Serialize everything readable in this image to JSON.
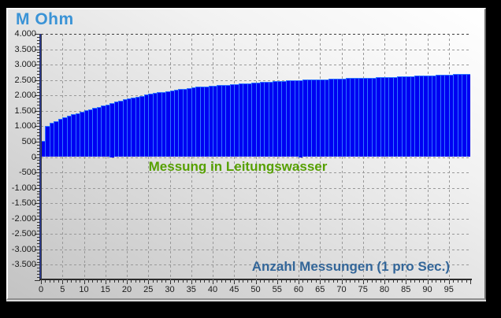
{
  "chart_data": {
    "type": "bar",
    "title": "M Ohm",
    "ylabel": "M Ohm",
    "xlabel": "Anzahl Messungen (1 pro Sec.)",
    "annotation": "Messung in Leitungswasser",
    "xlim": [
      0,
      100
    ],
    "ylim": [
      -4000,
      4000
    ],
    "grid": true,
    "gridline_style": "dashed",
    "y_major_step": 500,
    "y_minor_step": 100,
    "x_major_step": 5,
    "x_minor_step": 1,
    "y_tick_labels": [
      "4.000",
      "3.500",
      "3.000",
      "2.500",
      "2.000",
      "1.500",
      "1.000",
      "500",
      "0",
      "-500",
      "-1.000",
      "-1.500",
      "-2.000",
      "-2.500",
      "-3.000",
      "-3.500"
    ],
    "x_tick_labels": [
      "0",
      "5",
      "10",
      "15",
      "20",
      "25",
      "30",
      "35",
      "40",
      "45",
      "50",
      "55",
      "60",
      "65",
      "70",
      "75",
      "80",
      "85",
      "90",
      "95"
    ],
    "x_start": 0,
    "x_step": 1,
    "bar_count": 100,
    "values": [
      520,
      1020,
      1100,
      1170,
      1230,
      1290,
      1340,
      1390,
      1430,
      1470,
      1510,
      1550,
      1590,
      1630,
      1670,
      1710,
      1750,
      1790,
      1830,
      1870,
      1900,
      1930,
      1960,
      1990,
      2020,
      2050,
      2080,
      2100,
      2120,
      2140,
      2160,
      2180,
      2200,
      2220,
      2240,
      2260,
      2280,
      2290,
      2300,
      2310,
      2320,
      2340,
      2330,
      2350,
      2360,
      2370,
      2380,
      2390,
      2400,
      2410,
      2420,
      2430,
      2440,
      2450,
      2460,
      2470,
      2470,
      2480,
      2490,
      2490,
      2500,
      2510,
      2510,
      2520,
      2520,
      2530,
      2530,
      2540,
      2540,
      2550,
      2550,
      2560,
      2560,
      2570,
      2570,
      2580,
      2580,
      2580,
      2590,
      2590,
      2600,
      2600,
      2600,
      2610,
      2610,
      2620,
      2620,
      2640,
      2640,
      2650,
      2650,
      2650,
      2660,
      2660,
      2660,
      2670,
      2690,
      2690,
      2700,
      2700
    ]
  },
  "colors": {
    "frame": "#000000",
    "panel_light": "#FFFFFF",
    "panel_dark": "#C3C3C3",
    "bar_fill": "#0000F2",
    "bar_edge": "#2F74FF",
    "grid": "#999999",
    "y_axis_line": "#2B3A8E",
    "x_axis_line": "#2B2B2B",
    "tick_mark": "#333333",
    "tick_label_text": "#1A1A1A",
    "title_text": "#3A93D6",
    "annotation_text": "#56A000",
    "x_axis_title_text": "#336699"
  }
}
